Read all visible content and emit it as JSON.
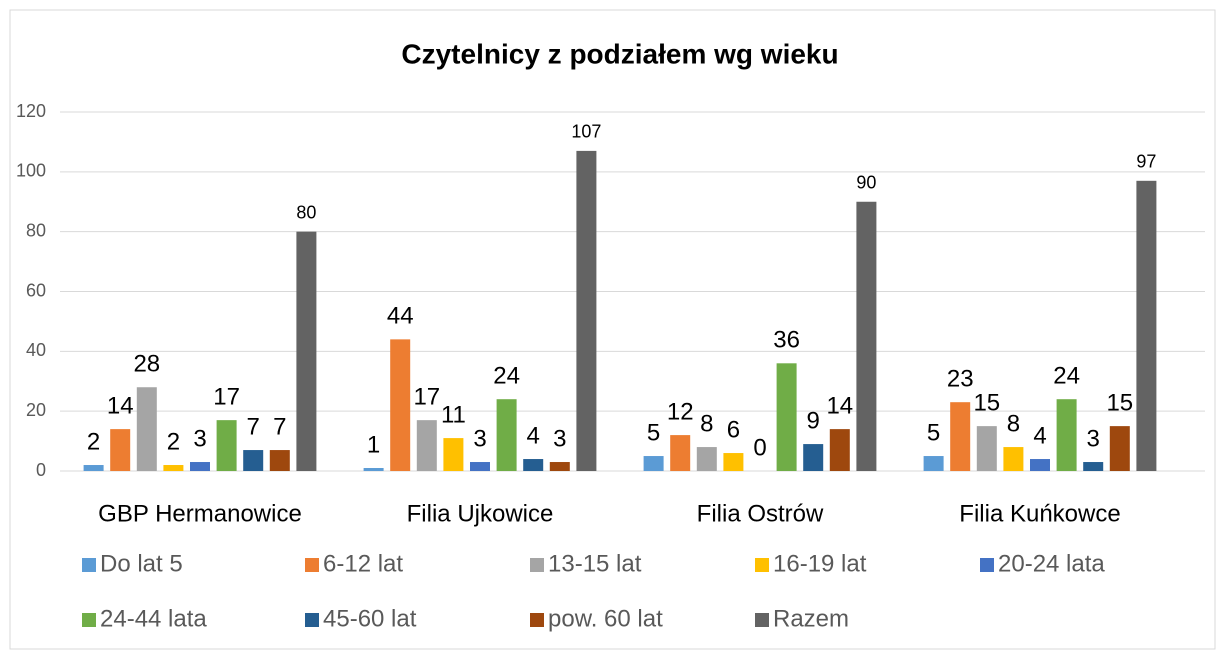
{
  "chart_data": {
    "type": "bar",
    "title": "Czytelnicy z podziałem wg wieku",
    "categories": [
      "GBP Hermanowice",
      "Filia Ujkowice",
      "Filia Ostrów",
      "Filia Kuńkowce"
    ],
    "series": [
      {
        "name": "Do lat 5",
        "color": "#5b9bd5",
        "values": [
          2,
          1,
          5,
          5
        ]
      },
      {
        "name": "6-12 lat",
        "color": "#ed7d31",
        "values": [
          14,
          44,
          12,
          23
        ]
      },
      {
        "name": "13-15 lat",
        "color": "#a5a5a5",
        "values": [
          28,
          17,
          8,
          15
        ]
      },
      {
        "name": "16-19 lat",
        "color": "#ffc000",
        "values": [
          2,
          11,
          6,
          8
        ]
      },
      {
        "name": "20-24 lata",
        "color": "#4472c4",
        "values": [
          3,
          3,
          0,
          4
        ]
      },
      {
        "name": "24-44 lata",
        "color": "#70ad47",
        "values": [
          17,
          24,
          36,
          24
        ]
      },
      {
        "name": "45-60 lat",
        "color": "#255e91",
        "values": [
          7,
          4,
          9,
          3
        ]
      },
      {
        "name": "pow. 60 lat",
        "color": "#9e480e",
        "values": [
          7,
          3,
          14,
          15
        ]
      },
      {
        "name": "Razem",
        "color": "#636363",
        "values": [
          80,
          107,
          90,
          97
        ]
      }
    ],
    "ylim": [
      0,
      120
    ],
    "yticks": [
      0,
      20,
      40,
      60,
      80,
      100,
      120
    ],
    "grid": true,
    "legend": "bottom"
  }
}
